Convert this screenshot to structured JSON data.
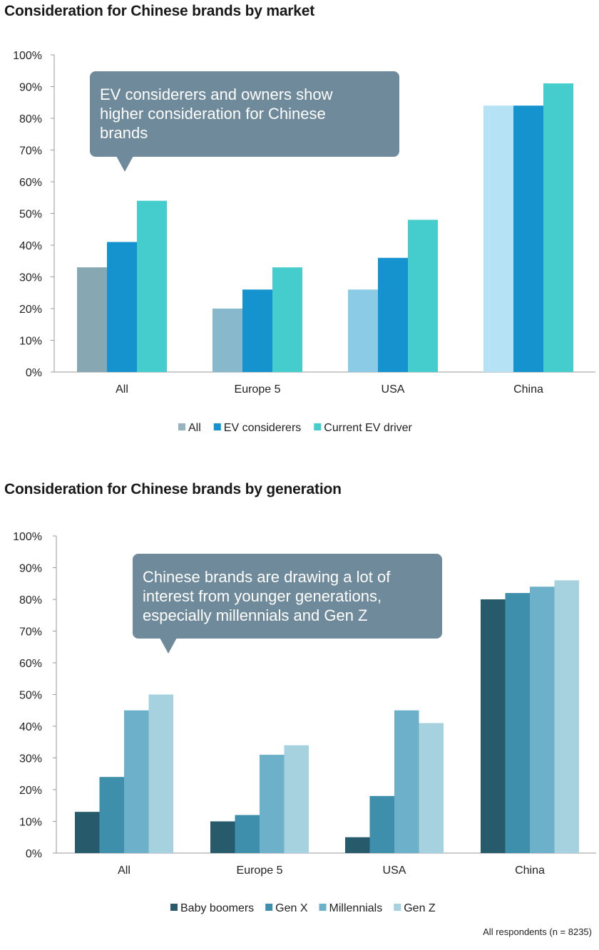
{
  "chart_data": [
    {
      "type": "bar",
      "title": "Consideration for Chinese brands by market",
      "categories": [
        "All",
        "Europe 5",
        "USA",
        "China"
      ],
      "ylim": [
        0,
        100
      ],
      "yticks": [
        "0%",
        "10%",
        "20%",
        "30%",
        "40%",
        "50%",
        "60%",
        "70%",
        "80%",
        "90%",
        "100%"
      ],
      "series": [
        {
          "name": "All",
          "values": [
            33,
            20,
            26,
            84
          ],
          "colors": [
            "#87a7b3",
            "#88b8cc",
            "#8ccbe6",
            "#b6e2f6"
          ],
          "legend_color": "#97b3bf"
        },
        {
          "name": "EV considerers",
          "values": [
            41,
            26,
            36,
            84
          ],
          "colors": [
            "#1593ce",
            "#1593ce",
            "#1593ce",
            "#1593ce"
          ],
          "legend_color": "#1593ce"
        },
        {
          "name": "Current EV driver",
          "values": [
            54,
            33,
            48,
            91
          ],
          "colors": [
            "#45cdcd",
            "#45cdcd",
            "#45cdcd",
            "#45cdcd"
          ],
          "legend_color": "#45cdcd"
        }
      ],
      "annotation": "EV considerers and owners show higher consideration for Chinese brands",
      "annotation_lines": [
        "EV considerers and owners show",
        "higher consideration for Chinese",
        "brands"
      ]
    },
    {
      "type": "bar",
      "title": "Consideration for Chinese brands by generation",
      "categories": [
        "All",
        "Europe 5",
        "USA",
        "China"
      ],
      "ylim": [
        0,
        100
      ],
      "yticks": [
        "0%",
        "10%",
        "20%",
        "30%",
        "40%",
        "50%",
        "60%",
        "70%",
        "80%",
        "90%",
        "100%"
      ],
      "series": [
        {
          "name": "Baby boomers",
          "values": [
            13,
            10,
            5,
            80
          ],
          "colors": [
            "#275b6c",
            "#275b6c",
            "#275b6c",
            "#275b6c"
          ],
          "legend_color": "#275b6c"
        },
        {
          "name": "Gen X",
          "values": [
            24,
            12,
            18,
            82
          ],
          "colors": [
            "#3e8fac",
            "#3e8fac",
            "#3e8fac",
            "#3e8fac"
          ],
          "legend_color": "#3e8fac"
        },
        {
          "name": "Millennials",
          "values": [
            45,
            31,
            45,
            84
          ],
          "colors": [
            "#6cb1c9",
            "#6cb1c9",
            "#6cb1c9",
            "#6cb1c9"
          ],
          "legend_color": "#6cb1c9"
        },
        {
          "name": "Gen Z",
          "values": [
            50,
            34,
            41,
            86
          ],
          "colors": [
            "#a6d1df",
            "#a6d1df",
            "#a6d1df",
            "#a6d1df"
          ],
          "legend_color": "#a6d1df"
        }
      ],
      "annotation": "Chinese brands are drawing a lot of interest from younger generations, especially millennials and Gen Z",
      "annotation_lines": [
        "Chinese brands are drawing a lot of",
        "interest from younger generations,",
        "especially millennials and Gen Z"
      ]
    }
  ],
  "footnote": "All respondents (n = 8235)",
  "colors": {
    "axis": "#9a9a9a",
    "callout": "#6f8a9b",
    "callout_text": "#ffffff"
  }
}
